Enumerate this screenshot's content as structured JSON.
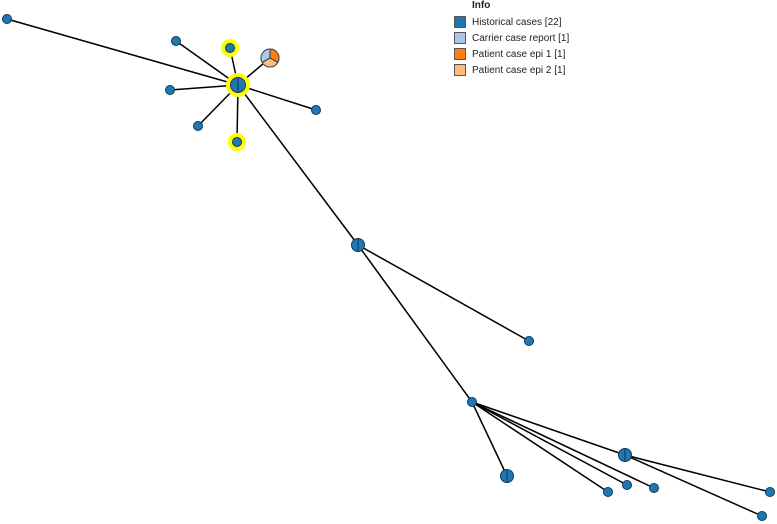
{
  "legend": {
    "title": "Info",
    "items": [
      {
        "label": "Historical cases [22]",
        "color": "#1f77b4"
      },
      {
        "label": "Carrier case report [1]",
        "color": "#aec7e8"
      },
      {
        "label": "Patient case epi 1 [1]",
        "color": "#ff7f0e"
      },
      {
        "label": "Patient case epi 2 [1]",
        "color": "#ffbb78"
      }
    ]
  },
  "colors": {
    "node": "#1f77b4",
    "node_stroke": "#0d3a5c",
    "highlight": "#ffff00",
    "edge": "#000000"
  }
}
